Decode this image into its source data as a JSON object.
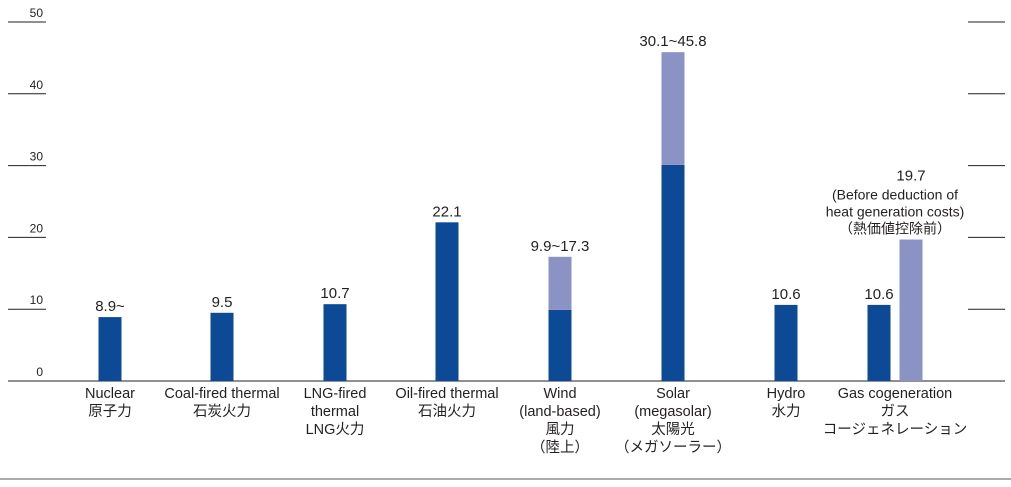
{
  "chart_data": {
    "type": "bar",
    "title": "",
    "xlabel": "",
    "ylabel": "",
    "ylim": [
      0,
      50
    ],
    "yticks": [
      "0",
      "10",
      "20",
      "30",
      "40",
      "50"
    ],
    "grid": false,
    "colors": {
      "base": "#0d4a96",
      "range": "#8a93c4",
      "axis": "#231f20"
    },
    "categories": [
      {
        "id": "nuclear",
        "lines": [
          "Nuclear",
          "原子力"
        ]
      },
      {
        "id": "coal",
        "lines": [
          "Coal-fired thermal",
          "石炭火力"
        ]
      },
      {
        "id": "lng",
        "lines": [
          "LNG-fired",
          "thermal",
          "LNG火力"
        ]
      },
      {
        "id": "oil",
        "lines": [
          "Oil-fired thermal",
          "石油火力"
        ]
      },
      {
        "id": "wind",
        "lines": [
          "Wind",
          "(land-based)",
          "風力",
          "（陸上）"
        ]
      },
      {
        "id": "solar",
        "lines": [
          "Solar",
          "(megasolar)",
          "太陽光",
          "（メガソーラー）"
        ]
      },
      {
        "id": "hydro",
        "lines": [
          "Hydro",
          "水力"
        ]
      },
      {
        "id": "gas",
        "lines": [
          "Gas cogeneration",
          "ガス",
          "コージェネレーション"
        ]
      }
    ],
    "bars": [
      {
        "category": "nuclear",
        "low": 8.9,
        "high": null,
        "label": "8.9~"
      },
      {
        "category": "coal",
        "low": 9.5,
        "high": null,
        "label": "9.5"
      },
      {
        "category": "lng",
        "low": 10.7,
        "high": null,
        "label": "10.7"
      },
      {
        "category": "oil",
        "low": 22.1,
        "high": null,
        "label": "22.1"
      },
      {
        "category": "wind",
        "low": 9.9,
        "high": 17.3,
        "label": "9.9~17.3"
      },
      {
        "category": "solar",
        "low": 30.1,
        "high": 45.8,
        "label": "30.1~45.8"
      },
      {
        "category": "hydro",
        "low": 10.6,
        "high": null,
        "label": "10.6"
      },
      {
        "category": "gas",
        "low": 10.6,
        "high": null,
        "label": "10.6"
      },
      {
        "category": "gas",
        "low": 0,
        "high": 19.7,
        "label": "19.7",
        "note": [
          "(Before deduction of",
          "heat generation costs)",
          "（熱価値控除前）"
        ]
      }
    ]
  }
}
